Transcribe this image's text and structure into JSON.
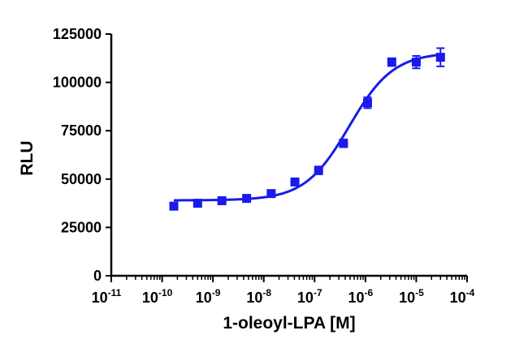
{
  "chart_data": {
    "type": "scatter",
    "title": "",
    "xlabel": "1-oleoyl-LPA [M]",
    "ylabel": "RLU",
    "xscale": "log",
    "xlim": [
      1e-11,
      0.0001
    ],
    "ylim": [
      0,
      125000
    ],
    "x_ticks": [
      {
        "base": "10",
        "exp": "-11"
      },
      {
        "base": "10",
        "exp": "-10"
      },
      {
        "base": "10",
        "exp": "-9"
      },
      {
        "base": "10",
        "exp": "-8"
      },
      {
        "base": "10",
        "exp": "-7"
      },
      {
        "base": "10",
        "exp": "-6"
      },
      {
        "base": "10",
        "exp": "-5"
      },
      {
        "base": "10",
        "exp": "-4"
      }
    ],
    "y_ticks": [
      "0",
      "25000",
      "50000",
      "75000",
      "100000",
      "125000"
    ],
    "color": "#1a1aeb",
    "series": [
      {
        "name": "",
        "x": [
          1.7e-10,
          5e-10,
          1.5e-09,
          4.6e-09,
          1.4e-08,
          4.1e-08,
          1.2e-07,
          3.7e-07,
          1.1e-06,
          3.3e-06,
          1e-05,
          3e-05
        ],
        "y": [
          36000,
          37500,
          38800,
          40000,
          42500,
          48500,
          54500,
          68500,
          89500,
          110500,
          110500,
          113000
        ],
        "err": [
          1000,
          800,
          800,
          900,
          1000,
          1000,
          2000,
          2000,
          2800,
          2000,
          3200,
          4700
        ]
      }
    ],
    "fit": {
      "bottom": 39000,
      "top": 115500,
      "log_ec50": -6.32,
      "hill": 1.0
    },
    "grid": false,
    "legend": "none"
  }
}
